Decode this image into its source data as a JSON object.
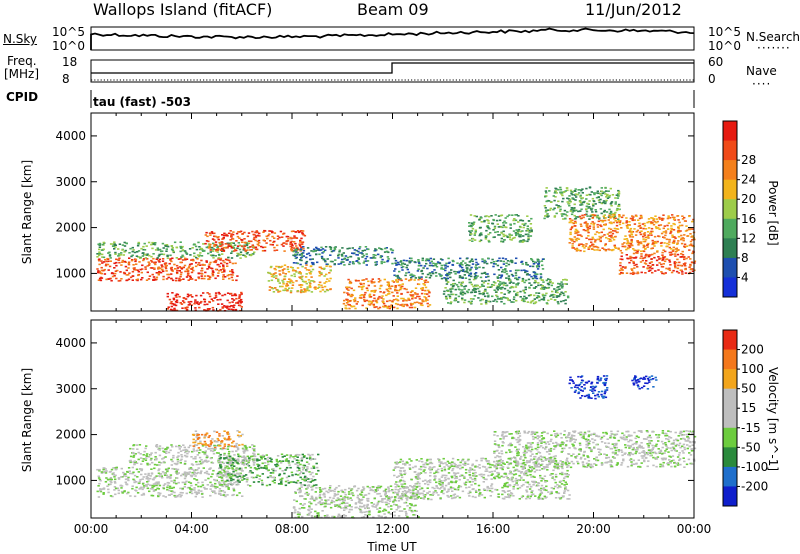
{
  "header": {
    "station": "Wallops Island (fitACF)",
    "beam": "Beam 09",
    "date": "11/Jun/2012"
  },
  "noise_panel": {
    "left_label": "N.Sky",
    "right_label": "N.Search",
    "ticks": [
      "10^5",
      "10^0"
    ]
  },
  "freq_panel": {
    "left_label_1": "Freq.",
    "left_label_2": "[MHz]",
    "left_ticks": [
      "18",
      "8"
    ],
    "right_label": "Nave",
    "right_ticks": [
      "60",
      "0"
    ]
  },
  "cpid_panel": {
    "label": "CPID",
    "value": "tau (fast) -503"
  },
  "colors": {
    "power": [
      "#1530d8",
      "#1e4fb0",
      "#2e7f52",
      "#4faa5e",
      "#9dcc4a",
      "#f2b41c",
      "#f4801c",
      "#f04a18",
      "#e61a10"
    ],
    "velocity": [
      "#0f1fcc",
      "#1f6fcc",
      "#2a8a3c",
      "#6ccc3e",
      "#bebebe",
      "#bebebe",
      "#f2a51c",
      "#f4781c",
      "#e82a14"
    ]
  },
  "chart_data": [
    {
      "type": "heatmap",
      "title": "",
      "xlabel": "Time UT",
      "ylabel": "Slant Range [km]",
      "x_ticks": [
        "00:00",
        "04:00",
        "08:00",
        "12:00",
        "16:00",
        "20:00",
        "00:00"
      ],
      "y_ticks": [
        "1000",
        "2000",
        "3000",
        "4000"
      ],
      "ylim": [
        180,
        4500
      ],
      "colorbar_label": "Power [dB]",
      "colorbar_ticks": [
        "4",
        "8",
        "12",
        "16",
        "20",
        "24",
        "28"
      ],
      "scatter_bands": [
        {
          "t": [
            0.2,
            5.8
          ],
          "r": [
            850,
            1350
          ],
          "level": 7
        },
        {
          "t": [
            0.2,
            6.5
          ],
          "r": [
            1350,
            1700
          ],
          "level": 3
        },
        {
          "t": [
            3.0,
            6.0
          ],
          "r": [
            200,
            600
          ],
          "level": 8
        },
        {
          "t": [
            4.5,
            8.5
          ],
          "r": [
            1500,
            1950
          ],
          "level": 7
        },
        {
          "t": [
            7.0,
            9.5
          ],
          "r": [
            600,
            1200
          ],
          "level": 5
        },
        {
          "t": [
            8.0,
            12.0
          ],
          "r": [
            1200,
            1600
          ],
          "level": 2
        },
        {
          "t": [
            10.0,
            13.5
          ],
          "r": [
            250,
            900
          ],
          "level": 6
        },
        {
          "t": [
            12.0,
            18.0
          ],
          "r": [
            900,
            1350
          ],
          "level": 2
        },
        {
          "t": [
            14.0,
            19.0
          ],
          "r": [
            350,
            900
          ],
          "level": 3
        },
        {
          "t": [
            15.0,
            17.5
          ],
          "r": [
            1700,
            2300
          ],
          "level": 3
        },
        {
          "t": [
            18.0,
            21.0
          ],
          "r": [
            2200,
            2900
          ],
          "level": 3
        },
        {
          "t": [
            19.0,
            24.0
          ],
          "r": [
            1500,
            2300
          ],
          "level": 6
        },
        {
          "t": [
            21.0,
            24.0
          ],
          "r": [
            1000,
            1500
          ],
          "level": 7
        }
      ]
    },
    {
      "type": "heatmap",
      "title": "",
      "xlabel": "Time UT",
      "ylabel": "Slant Range [km]",
      "x_ticks": [
        "00:00",
        "04:00",
        "08:00",
        "12:00",
        "16:00",
        "20:00",
        "00:00"
      ],
      "y_ticks": [
        "1000",
        "2000",
        "3000",
        "4000"
      ],
      "ylim": [
        180,
        4500
      ],
      "colorbar_label": "Velocity [m s^-1]",
      "colorbar_ticks": [
        "200",
        "100",
        "50",
        "15",
        "-15",
        "-50",
        "-100",
        "-200"
      ],
      "scatter_bands": [
        {
          "t": [
            0.2,
            6.0
          ],
          "r": [
            650,
            1300
          ],
          "level": 4
        },
        {
          "t": [
            1.5,
            6.5
          ],
          "r": [
            1350,
            1800
          ],
          "level": 4
        },
        {
          "t": [
            4.0,
            6.0
          ],
          "r": [
            1700,
            2100
          ],
          "level": 6
        },
        {
          "t": [
            5.0,
            9.0
          ],
          "r": [
            900,
            1600
          ],
          "level": 3
        },
        {
          "t": [
            8.0,
            13.0
          ],
          "r": [
            200,
            900
          ],
          "level": 4
        },
        {
          "t": [
            12.0,
            19.0
          ],
          "r": [
            600,
            1500
          ],
          "level": 4
        },
        {
          "t": [
            16.0,
            24.0
          ],
          "r": [
            1300,
            2100
          ],
          "level": 4
        },
        {
          "t": [
            19.0,
            20.5
          ],
          "r": [
            2800,
            3300
          ],
          "level": 0
        },
        {
          "t": [
            21.5,
            22.5
          ],
          "r": [
            3000,
            3300
          ],
          "level": 0
        }
      ]
    }
  ]
}
